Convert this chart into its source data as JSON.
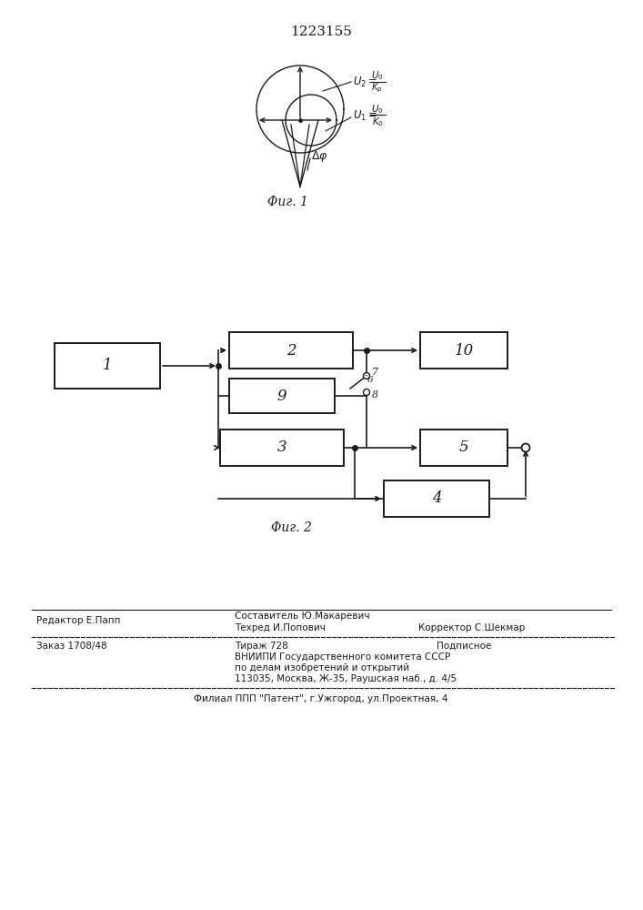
{
  "patent_number": "1223155",
  "fig1_caption": "Φиг. 1",
  "fig2_caption": "Φиг. 2",
  "background_color": "#ffffff",
  "line_color": "#1a1a1a",
  "box1_label": "1",
  "box2_label": "2",
  "box3_label": "3",
  "box4_label": "4",
  "box5_label": "5",
  "box9_label": "9",
  "box10_label": "10",
  "switch_label": "̑6",
  "node7_label": "7",
  "node8_label": "8",
  "editor_line": "Редактор Е.Папп",
  "composer_line": "Составитель Ю.Макаревич",
  "techred_line": "Техред И.Попович",
  "corrector_line": "Корректор С.Шекмар",
  "order_line": "Заказ 1708/48",
  "tirazh_line": "Тираж 728",
  "podpisnoe_line": "Подписное",
  "vnipi_line1": "ВНИИПИ Государственного комитета СССР",
  "vnipi_line2": "по делам изобретений и открытий",
  "vnipi_line3": "113035, Москва, Ж-35, Раушская наб., д. 4/5",
  "filial_line": "Филиал ППП \"Патент\", г.Ужгород, ул.Проектная, 4"
}
